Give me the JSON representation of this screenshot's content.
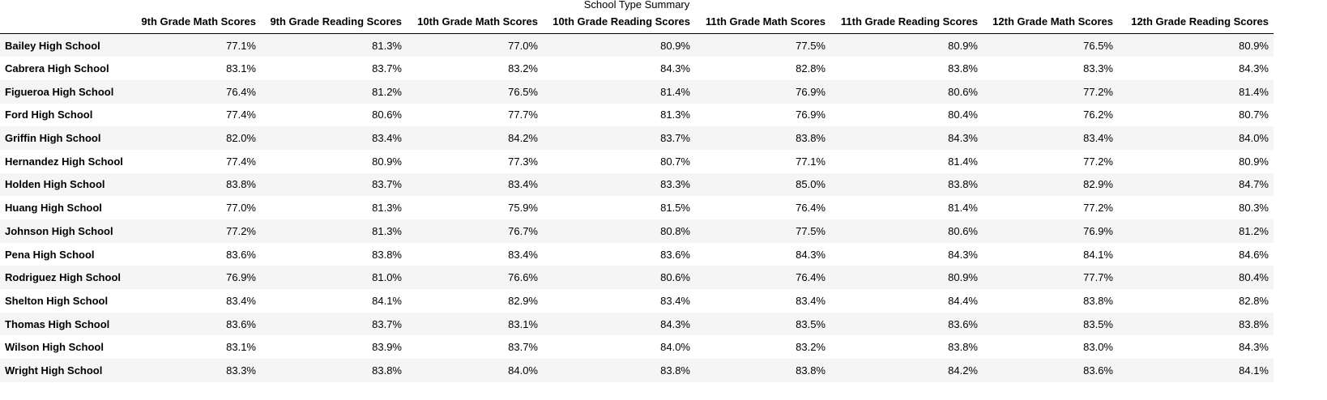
{
  "caption": "School Type Summary",
  "columns": [
    "",
    "9th Grade Math Scores",
    "9th Grade Reading Scores",
    "10th Grade Math Scores",
    "10th Grade Reading Scores",
    "11th Grade Math Scores",
    "11th Grade Reading Scores",
    "12th Grade Math Scores",
    "12th Grade Reading Scores"
  ],
  "rows": [
    {
      "school": "Bailey High School",
      "values": [
        "77.1%",
        "81.3%",
        "77.0%",
        "80.9%",
        "77.5%",
        "80.9%",
        "76.5%",
        "80.9%"
      ]
    },
    {
      "school": "Cabrera High School",
      "values": [
        "83.1%",
        "83.7%",
        "83.2%",
        "84.3%",
        "82.8%",
        "83.8%",
        "83.3%",
        "84.3%"
      ]
    },
    {
      "school": "Figueroa High School",
      "values": [
        "76.4%",
        "81.2%",
        "76.5%",
        "81.4%",
        "76.9%",
        "80.6%",
        "77.2%",
        "81.4%"
      ]
    },
    {
      "school": "Ford High School",
      "values": [
        "77.4%",
        "80.6%",
        "77.7%",
        "81.3%",
        "76.9%",
        "80.4%",
        "76.2%",
        "80.7%"
      ]
    },
    {
      "school": "Griffin High School",
      "values": [
        "82.0%",
        "83.4%",
        "84.2%",
        "83.7%",
        "83.8%",
        "84.3%",
        "83.4%",
        "84.0%"
      ]
    },
    {
      "school": "Hernandez High School",
      "values": [
        "77.4%",
        "80.9%",
        "77.3%",
        "80.7%",
        "77.1%",
        "81.4%",
        "77.2%",
        "80.9%"
      ]
    },
    {
      "school": "Holden High School",
      "values": [
        "83.8%",
        "83.7%",
        "83.4%",
        "83.3%",
        "85.0%",
        "83.8%",
        "82.9%",
        "84.7%"
      ]
    },
    {
      "school": "Huang High School",
      "values": [
        "77.0%",
        "81.3%",
        "75.9%",
        "81.5%",
        "76.4%",
        "81.4%",
        "77.2%",
        "80.3%"
      ]
    },
    {
      "school": "Johnson High School",
      "values": [
        "77.2%",
        "81.3%",
        "76.7%",
        "80.8%",
        "77.5%",
        "80.6%",
        "76.9%",
        "81.2%"
      ]
    },
    {
      "school": "Pena High School",
      "values": [
        "83.6%",
        "83.8%",
        "83.4%",
        "83.6%",
        "84.3%",
        "84.3%",
        "84.1%",
        "84.6%"
      ]
    },
    {
      "school": "Rodriguez High School",
      "values": [
        "76.9%",
        "81.0%",
        "76.6%",
        "80.6%",
        "76.4%",
        "80.9%",
        "77.7%",
        "80.4%"
      ]
    },
    {
      "school": "Shelton High School",
      "values": [
        "83.4%",
        "84.1%",
        "82.9%",
        "83.4%",
        "83.4%",
        "84.4%",
        "83.8%",
        "82.8%"
      ]
    },
    {
      "school": "Thomas High School",
      "values": [
        "83.6%",
        "83.7%",
        "83.1%",
        "84.3%",
        "83.5%",
        "83.6%",
        "83.5%",
        "83.8%"
      ]
    },
    {
      "school": "Wilson High School",
      "values": [
        "83.1%",
        "83.9%",
        "83.7%",
        "84.0%",
        "83.2%",
        "83.8%",
        "83.0%",
        "84.3%"
      ]
    },
    {
      "school": "Wright High School",
      "values": [
        "83.3%",
        "83.8%",
        "84.0%",
        "83.8%",
        "83.8%",
        "84.2%",
        "83.6%",
        "84.1%"
      ]
    }
  ],
  "colors": {
    "stripe": "#f5f5f5",
    "background": "#ffffff",
    "text": "#000000",
    "header_rule": "#000000"
  }
}
